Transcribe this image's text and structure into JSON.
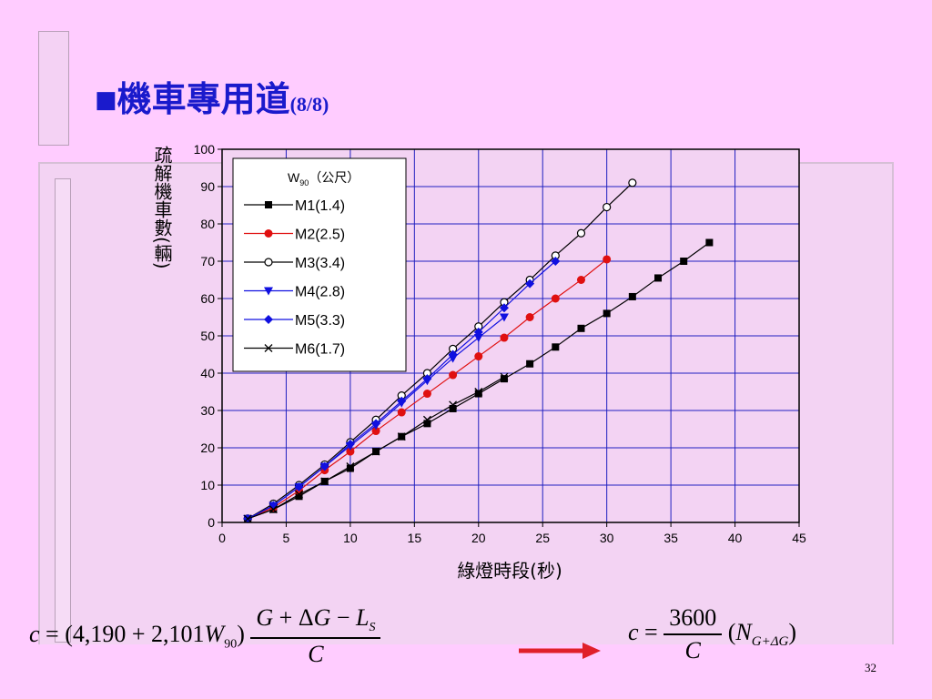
{
  "slide": {
    "bullet": "■",
    "title": "機車專用道",
    "title_suffix": "(8/8)",
    "page_number": "32"
  },
  "colors": {
    "background": "#ffccff",
    "title": "#1a1acc",
    "grid": "#2020c0",
    "arrow": "#e0202a"
  },
  "formulas": {
    "left": {
      "lhs": "c",
      "eq": "=",
      "coef": "(4,190 + 2,101",
      "var": "W",
      "var_sub": "90",
      "close": ")",
      "num_G": "G",
      "num_mid": "+ Δ",
      "num_G2": "G",
      "num_minus": "−",
      "num_L": "L",
      "num_L_sub": "S",
      "den": "C"
    },
    "right": {
      "lhs": "c",
      "eq": "=",
      "num": "3600",
      "den": "C",
      "open": "(",
      "N": "N",
      "N_sub": "G+ΔG",
      "close": ")"
    }
  },
  "chart_data": {
    "type": "line",
    "title": "",
    "xlabel": "綠燈時段(秒)",
    "ylabel": "疏解機車數(輛)",
    "xlim": [
      0,
      45
    ],
    "ylim": [
      0,
      100
    ],
    "xticks": [
      0,
      5,
      10,
      15,
      20,
      25,
      30,
      35,
      40,
      45
    ],
    "yticks": [
      0,
      10,
      20,
      30,
      40,
      50,
      60,
      70,
      80,
      90,
      100
    ],
    "grid": true,
    "legend_title": "W",
    "legend_title_sub": "90",
    "legend_title_unit": "（公尺）",
    "legend_position": "top-left",
    "series": [
      {
        "name": "M1(1.4)",
        "color": "#000000",
        "marker": "square",
        "x": [
          2,
          4,
          6,
          8,
          10,
          12,
          14,
          16,
          18,
          20,
          22,
          24,
          26,
          28,
          30,
          32,
          34,
          36,
          38
        ],
        "y": [
          1,
          3.5,
          7,
          11,
          14.5,
          19,
          23,
          26.5,
          30.5,
          34.5,
          38.5,
          42.5,
          47,
          52,
          56,
          60.5,
          65.5,
          70,
          75
        ]
      },
      {
        "name": "M2(2.5)",
        "color": "#e01010",
        "marker": "circle",
        "x": [
          2,
          4,
          6,
          8,
          10,
          12,
          14,
          16,
          18,
          20,
          22,
          24,
          26,
          28,
          30
        ],
        "y": [
          1,
          4,
          8.5,
          14,
          19,
          24.5,
          29.5,
          34.5,
          39.5,
          44.5,
          49.5,
          55,
          60,
          65,
          70.5
        ]
      },
      {
        "name": "M3(3.4)",
        "color": "#000000",
        "marker": "open-circle",
        "x": [
          2,
          4,
          6,
          8,
          10,
          12,
          14,
          16,
          18,
          20,
          22,
          24,
          26,
          28,
          30,
          32
        ],
        "y": [
          1,
          5,
          10,
          15.5,
          21.5,
          27.5,
          34,
          40,
          46.5,
          52.5,
          59,
          65,
          71.5,
          77.5,
          84.5,
          91
        ]
      },
      {
        "name": "M4(2.8)",
        "color": "#1010e0",
        "marker": "triangle-down",
        "x": [
          2,
          4,
          6,
          8,
          10,
          12,
          14,
          16,
          18,
          20,
          22
        ],
        "y": [
          1,
          4.5,
          9.5,
          15,
          20.5,
          26,
          32,
          38,
          44,
          49.5,
          55
        ]
      },
      {
        "name": "M5(3.3)",
        "color": "#1010e0",
        "marker": "diamond",
        "x": [
          2,
          4,
          6,
          8,
          10,
          12,
          14,
          16,
          18,
          20,
          22,
          24,
          26
        ],
        "y": [
          1,
          4.5,
          9.5,
          15,
          21,
          26.5,
          32.5,
          38.5,
          45,
          51,
          57.5,
          64,
          70
        ]
      },
      {
        "name": "M6(1.7)",
        "color": "#000000",
        "marker": "cross",
        "x": [
          2,
          4,
          6,
          8,
          10,
          12,
          14,
          16,
          18,
          20,
          22
        ],
        "y": [
          1,
          3.5,
          7.5,
          11,
          15,
          19,
          23,
          27.5,
          31.5,
          35,
          39
        ]
      }
    ]
  }
}
